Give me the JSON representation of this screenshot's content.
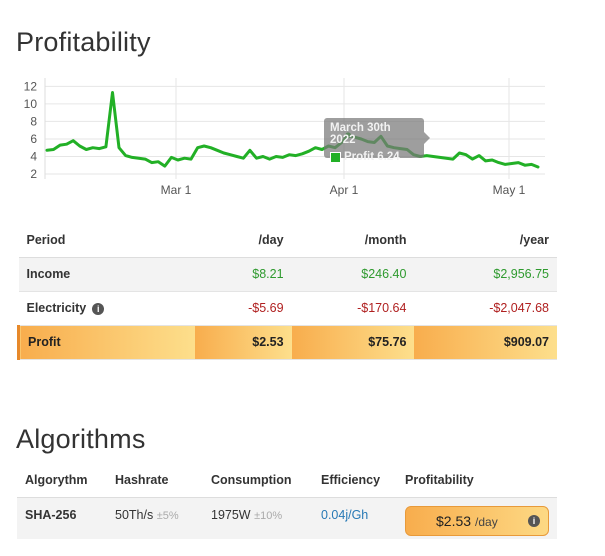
{
  "profitability": {
    "title": "Profitability",
    "chart_data": {
      "type": "line",
      "x_ticks": [
        "Mar 1",
        "Apr 1",
        "May 1"
      ],
      "y_ticks": [
        2,
        4,
        6,
        8,
        10,
        12
      ],
      "ylim": [
        2,
        12.5
      ],
      "grid": true,
      "series": [
        {
          "name": "Profit",
          "color": "#22b026",
          "values": [
            4.7,
            4.8,
            5.3,
            5.4,
            5.8,
            5.2,
            4.8,
            5.0,
            4.9,
            5.1,
            11.3,
            5.0,
            4.1,
            3.9,
            3.8,
            3.7,
            3.3,
            3.4,
            2.9,
            3.9,
            3.6,
            3.8,
            3.7,
            5.0,
            5.2,
            5.0,
            4.7,
            4.4,
            4.2,
            4.0,
            3.8,
            4.7,
            3.8,
            4.0,
            3.7,
            4.0,
            3.9,
            4.2,
            4.1,
            4.3,
            4.6,
            5.0,
            4.8,
            5.2,
            5.0,
            5.6,
            6.4,
            6.2,
            6.0,
            5.7,
            5.6,
            6.3,
            5.2,
            5.0,
            4.9,
            4.8,
            4.2,
            4.0,
            4.1,
            4.0,
            3.9,
            3.8,
            3.7,
            4.4,
            4.2,
            3.7,
            4.1,
            3.5,
            3.6,
            3.3,
            3.1,
            3.2,
            3.3,
            3.0,
            3.1,
            2.8
          ]
        }
      ]
    },
    "tooltip": {
      "date": "March 30th 2022",
      "label": "Profit",
      "value": "6.24"
    },
    "table": {
      "headers": [
        "Period",
        "/day",
        "/month",
        "/year"
      ],
      "rows": {
        "income": {
          "label": "Income",
          "day": "$8.21",
          "month": "$246.40",
          "year": "$2,956.75"
        },
        "electricity": {
          "label": "Electricity",
          "day": "-$5.69",
          "month": "-$170.64",
          "year": "-$2,047.68"
        },
        "profit": {
          "label": "Profit",
          "day": "$2.53",
          "month": "$75.76",
          "year": "$909.07"
        }
      }
    }
  },
  "algorithms": {
    "title": "Algorithms",
    "headers": [
      "Algorythm",
      "Hashrate",
      "Consumption",
      "Efficiency",
      "Profitability"
    ],
    "row": {
      "name": "SHA-256",
      "hashrate": "50Th/s",
      "hashrate_tol": "±5%",
      "consumption": "1975W",
      "consumption_tol": "±10%",
      "efficiency": "0.04j/Gh",
      "profit": "$2.53",
      "profit_unit": "/day"
    }
  },
  "icons": {
    "info": "i"
  },
  "colors": {
    "accent_orange": "#f8ad4d",
    "positive": "#2e9a2e",
    "negative": "#b02020",
    "line": "#22b026",
    "link": "#2779b5"
  }
}
